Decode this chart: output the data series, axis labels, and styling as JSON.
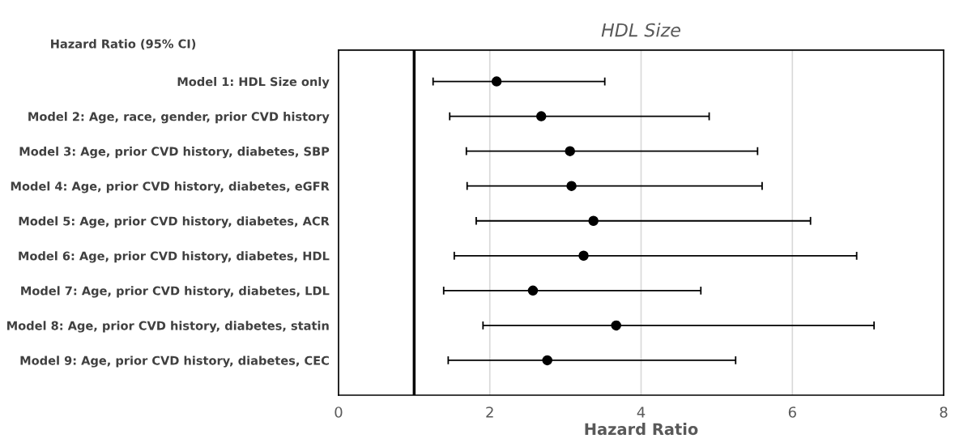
{
  "chart_data": {
    "type": "scatter",
    "title": "HDL Size",
    "xlabel": "Hazard Ratio",
    "annotations": [
      "Hazard Ratio (95% CI)"
    ],
    "orientation": "horizontal",
    "categories": [
      "Model 1: HDL Size only",
      "Model 2: Age, race, gender, prior CVD history",
      "Model 3: Age, prior CVD history, diabetes, SBP",
      "Model 4: Age, prior CVD history, diabetes, eGFR",
      "Model 5: Age, prior CVD history, diabetes, ACR",
      "Model 6: Age, prior CVD history, diabetes, HDL",
      "Model 7: Age, prior CVD history, diabetes, LDL",
      "Model 8: Age, prior CVD history, diabetes, statin",
      "Model 9: Age, prior CVD history, diabetes, CEC"
    ],
    "series": [
      {
        "color": "#000000",
        "values": [
          2.09,
          2.68,
          3.06,
          3.08,
          3.37,
          3.24,
          2.57,
          3.67,
          2.76
        ],
        "errors": [
          [
            1.25,
            3.52
          ],
          [
            1.47,
            4.9
          ],
          [
            1.69,
            5.54
          ],
          [
            1.7,
            5.6
          ],
          [
            1.82,
            6.24
          ],
          [
            1.53,
            6.85
          ],
          [
            1.39,
            4.79
          ],
          [
            1.91,
            7.08
          ],
          [
            1.45,
            5.25
          ]
        ]
      }
    ],
    "xlim": [
      0,
      8
    ],
    "xticks": [
      0,
      2,
      4,
      6,
      8
    ],
    "ref_lines": [
      {
        "axis": "x",
        "value": 1,
        "color": "#000000"
      }
    ],
    "grid": "x",
    "marker": "circle",
    "legend": false
  }
}
